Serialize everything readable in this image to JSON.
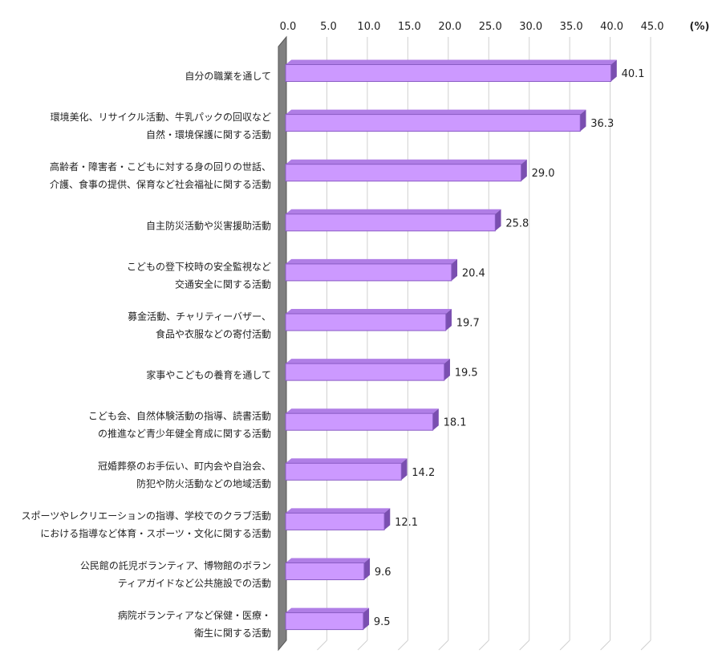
{
  "chart_data": {
    "type": "bar",
    "orientation": "horizontal",
    "unit_label": "(%)",
    "xlim": [
      0,
      45
    ],
    "ticks": [
      "0.0",
      "5.0",
      "10.0",
      "15.0",
      "20.0",
      "25.0",
      "30.0",
      "35.0",
      "40.0",
      "45.0"
    ],
    "grid": true,
    "categories": [
      [
        "自分の職業を通して"
      ],
      [
        "環境美化、リサイクル活動、牛乳パックの回収など",
        "自然・環境保護に関する活動"
      ],
      [
        "高齢者・障害者・こどもに対する身の回りの世話、",
        "介護、食事の提供、保育など社会福祉に関する活動"
      ],
      [
        "自主防災活動や災害援助活動"
      ],
      [
        "こどもの登下校時の安全監視など",
        "交通安全に関する活動"
      ],
      [
        "募金活動、チャリティーバザー、",
        "食品や衣服などの寄付活動"
      ],
      [
        "家事やこどもの養育を通して"
      ],
      [
        "こども会、自然体験活動の指導、読書活動",
        "の推進など青少年健全育成に関する活動"
      ],
      [
        "冠婚葬祭のお手伝い、町内会や自治会、",
        "防犯や防火活動などの地域活動"
      ],
      [
        "スポーツやレクリエーションの指導、学校でのクラブ活動",
        "における指導など体育・スポーツ・文化に関する活動"
      ],
      [
        "公民館の託児ボランティア、博物館のボラン",
        "ティアガイドなど公共施設での活動"
      ],
      [
        "病院ボランティアなど保健・医療・",
        "衛生に関する活動"
      ]
    ],
    "values": [
      40.1,
      36.3,
      29.0,
      25.8,
      20.4,
      19.7,
      19.5,
      18.1,
      14.2,
      12.1,
      9.6,
      9.5
    ],
    "value_labels": [
      "40.1",
      "36.3",
      "29.0",
      "25.8",
      "20.4",
      "19.7",
      "19.5",
      "18.1",
      "14.2",
      "12.1",
      "9.6",
      "9.5"
    ],
    "colors": {
      "bar_front": "#cc99ff",
      "bar_top": "#b07ee6",
      "bar_side": "#7a4fb0",
      "bar_edge": "#8a5cc4",
      "wall": "#808080",
      "wall_dark": "#555555",
      "grid": "#d0d0d0"
    }
  }
}
